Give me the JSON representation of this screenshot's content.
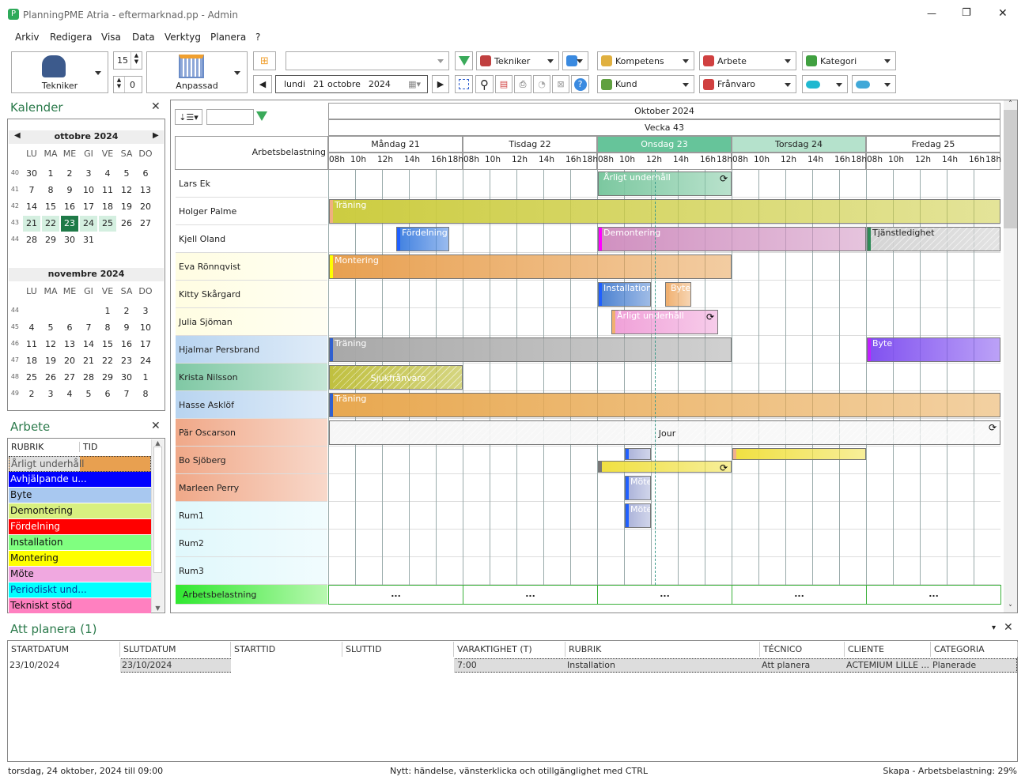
{
  "window": {
    "title": "PlanningPME Atria - eftermarknad.pp - Admin",
    "min": "—",
    "max": "❐",
    "close": "✕"
  },
  "menu": [
    "Arkiv",
    "Redigera",
    "Visa",
    "Data",
    "Verktyg",
    "Planera",
    "?"
  ],
  "toolbar": {
    "resource_view": "Tekniker",
    "spin_top": "15",
    "spin_bottom": "0",
    "view_mode": "Anpassad",
    "search_value": "",
    "date": {
      "day": "lundi",
      "num": "21",
      "month": "octobre",
      "year": "2024"
    },
    "filters_row1": [
      "Tekniker",
      "",
      "Kompetens",
      "Arbete",
      "Kategori"
    ],
    "filters_row2": [
      "Kund",
      "Frånvaro",
      "",
      ""
    ]
  },
  "calendar": {
    "title": "Kalender",
    "weekdays": [
      "LU",
      "MA",
      "ME",
      "GI",
      "VE",
      "SA",
      "DO"
    ],
    "months": [
      {
        "name": "ottobre 2024",
        "weeks": [
          {
            "wk": "40",
            "days": [
              "30",
              "1",
              "2",
              "3",
              "4",
              "5",
              "6"
            ]
          },
          {
            "wk": "41",
            "days": [
              "7",
              "8",
              "9",
              "10",
              "11",
              "12",
              "13"
            ]
          },
          {
            "wk": "42",
            "days": [
              "14",
              "15",
              "16",
              "17",
              "18",
              "19",
              "20"
            ]
          },
          {
            "wk": "43",
            "days": [
              "21",
              "22",
              "23",
              "24",
              "25",
              "26",
              "27"
            ]
          },
          {
            "wk": "44",
            "days": [
              "28",
              "29",
              "30",
              "31",
              "",
              "",
              ""
            ]
          }
        ]
      },
      {
        "name": "novembre 2024",
        "weeks": [
          {
            "wk": "44",
            "days": [
              "",
              "",
              "",
              "",
              "1",
              "2",
              "3"
            ]
          },
          {
            "wk": "45",
            "days": [
              "4",
              "5",
              "6",
              "7",
              "8",
              "9",
              "10"
            ]
          },
          {
            "wk": "46",
            "days": [
              "11",
              "12",
              "13",
              "14",
              "15",
              "16",
              "17"
            ]
          },
          {
            "wk": "47",
            "days": [
              "18",
              "19",
              "20",
              "21",
              "22",
              "23",
              "24"
            ]
          },
          {
            "wk": "48",
            "days": [
              "25",
              "26",
              "27",
              "28",
              "29",
              "30",
              "1"
            ]
          },
          {
            "wk": "49",
            "days": [
              "2",
              "3",
              "4",
              "5",
              "6",
              "7",
              "8"
            ]
          }
        ]
      }
    ],
    "selected_day": "23",
    "highlight_week": "43"
  },
  "arbete": {
    "title": "Arbete",
    "columns": [
      "RUBRIK",
      "TID"
    ],
    "items": [
      {
        "label": "Årligt underhåll",
        "color": "#e8a050"
      },
      {
        "label": "Avhjälpande u...",
        "color": "#0000ff"
      },
      {
        "label": "Byte",
        "color": "#a8c8f0"
      },
      {
        "label": "Demontering",
        "color": "#d8f080"
      },
      {
        "label": "Fördelning",
        "color": "#ff0000"
      },
      {
        "label": "Installation",
        "color": "#80ff80"
      },
      {
        "label": "Montering",
        "color": "#ffff00"
      },
      {
        "label": "Möte",
        "color": "#f0a8e0"
      },
      {
        "label": "Periodiskt und...",
        "color": "#00ffff"
      },
      {
        "label": "Tekniskt stöd",
        "color": "#ff80c0"
      }
    ]
  },
  "gantt": {
    "month": "Oktober 2024",
    "week": "Vecka 43",
    "load_label": "Arbetsbelastning",
    "days": [
      {
        "label": "Måndag 21"
      },
      {
        "label": "Tisdag 22"
      },
      {
        "label": "Onsdag 23",
        "color": "#66c49a",
        "text": "#fff"
      },
      {
        "label": "Torsdag 24",
        "color": "#b5e2cc"
      },
      {
        "label": "Fredag 25"
      }
    ],
    "hours": [
      "08h",
      "10h",
      "12h",
      "14h",
      "16h",
      "18h"
    ],
    "rows": [
      {
        "name": "Lars Ek",
        "bg": "#ffffff"
      },
      {
        "name": "Holger Palme",
        "bg": "#ffffff"
      },
      {
        "name": "Kjell Oland",
        "bg": "#ffffff"
      },
      {
        "name": "Eva Rönnqvist",
        "bg": "#fffde2"
      },
      {
        "name": "Kitty Skårgard",
        "bg": "#fffde2"
      },
      {
        "name": "Julia Sjöman",
        "bg": "#fffde2"
      },
      {
        "name": "Hjalmar Persbrand",
        "bg": "#b8d4f0"
      },
      {
        "name": "Krista Nilsson",
        "bg": "#7fc8a4"
      },
      {
        "name": "Hasse Asklöf",
        "bg": "#b8d4f0"
      },
      {
        "name": "Pär Oscarson",
        "bg": "#f0a888"
      },
      {
        "name": "Bo Sjöberg",
        "bg": "#f0a888"
      },
      {
        "name": "Marleen Perry",
        "bg": "#f0a888"
      },
      {
        "name": "Rum1",
        "bg": "#e0f8fc"
      },
      {
        "name": "Rum2",
        "bg": "#e0f8fc"
      },
      {
        "name": "Rum3",
        "bg": "#e0f8fc"
      }
    ],
    "load_row": {
      "label": "Arbetsbelastning",
      "cells": [
        "...",
        "...",
        "...",
        "...",
        "..."
      ]
    },
    "tasks": [
      {
        "row": 0,
        "label": "Årligt underhåll",
        "from": [
          2,
          8
        ],
        "to": [
          2,
          18
        ],
        "color": "#7cc8a0",
        "accent": "#7cc8a0",
        "recurring": true
      },
      {
        "row": 1,
        "label": "Träning",
        "from": [
          0,
          8
        ],
        "to": [
          4,
          18
        ],
        "color": "#cccc40",
        "accent": "#f0b080"
      },
      {
        "row": 2,
        "label": "Fördelning",
        "from": [
          0,
          13
        ],
        "to": [
          0,
          17
        ],
        "color": "#4080e0",
        "accent": "#2060ff"
      },
      {
        "row": 2,
        "label": "Demontering",
        "from": [
          2,
          8
        ],
        "to": [
          3,
          18
        ],
        "color": "#d090c0",
        "accent": "#ff00ff"
      },
      {
        "row": 2,
        "label": "Tjänstledighet",
        "from": [
          4,
          8
        ],
        "to": [
          4,
          18
        ],
        "color": "#d4d4d4",
        "accent": "#2e8b57",
        "hatched": true,
        "dark": true
      },
      {
        "row": 3,
        "label": "Montering",
        "from": [
          0,
          8
        ],
        "to": [
          2,
          18
        ],
        "color": "#e8a050",
        "accent": "#ffff00"
      },
      {
        "row": 4,
        "label": "Installation",
        "from": [
          2,
          8
        ],
        "to": [
          2,
          12
        ],
        "color": "#4a80d0",
        "accent": "#2060ff"
      },
      {
        "row": 4,
        "label": "Byte",
        "from": [
          2,
          13
        ],
        "to": [
          2,
          15
        ],
        "color": "#f0b070",
        "accent": "#f0b070"
      },
      {
        "row": 5,
        "label": "Årligt underhåll",
        "from": [
          2,
          9
        ],
        "to": [
          2,
          17
        ],
        "color": "#f0a0d8",
        "accent": "#f0b070",
        "recurring": true
      },
      {
        "row": 6,
        "label": "Träning",
        "from": [
          0,
          8
        ],
        "to": [
          2,
          18
        ],
        "color": "#a8a8a8",
        "accent": "#3060d0"
      },
      {
        "row": 6,
        "label": "Byte",
        "from": [
          4,
          8
        ],
        "to": [
          4,
          18
        ],
        "color": "#8050f0",
        "accent": "#c020ff"
      },
      {
        "row": 7,
        "label": "Sjukfrånvaro",
        "from": [
          0,
          8
        ],
        "to": [
          0,
          18
        ],
        "color": "#c0c040",
        "accent": "#c0c040",
        "hatched": true,
        "center": true
      },
      {
        "row": 8,
        "label": "Träning",
        "from": [
          0,
          8
        ],
        "to": [
          4,
          18
        ],
        "color": "#e8a850",
        "accent": "#3060d0"
      },
      {
        "row": 9,
        "label": "Jour",
        "from": [
          0,
          8
        ],
        "to": [
          4,
          18
        ],
        "color": "#f6f6f6",
        "accent": "#f6f6f6",
        "hatched": true,
        "dark": true,
        "center": true,
        "recurring": true
      },
      {
        "row": 10,
        "label": "",
        "from": [
          2,
          10
        ],
        "to": [
          2,
          12
        ],
        "color": "#a8b0d8",
        "accent": "#2060ff",
        "half": "top"
      },
      {
        "row": 10,
        "label": "",
        "from": [
          3,
          8
        ],
        "to": [
          3,
          18
        ],
        "color": "#f0e040",
        "accent": "#f0b090",
        "half": "top"
      },
      {
        "row": 10,
        "label": "",
        "from": [
          2,
          8
        ],
        "to": [
          2,
          18
        ],
        "color": "#f0e040",
        "accent": "#777",
        "half": "bottom",
        "recurring": true
      },
      {
        "row": 11,
        "label": "Möte",
        "from": [
          2,
          10
        ],
        "to": [
          2,
          12
        ],
        "color": "#a8b0d8",
        "accent": "#2060ff"
      },
      {
        "row": 12,
        "label": "Möte",
        "from": [
          2,
          10
        ],
        "to": [
          2,
          12
        ],
        "color": "#a8b0d8",
        "accent": "#2060ff"
      }
    ]
  },
  "att_planera": {
    "title": "Att planera (1)",
    "columns": [
      "STARTDATUM",
      "SLUTDATUM",
      "STARTTID",
      "SLUTTID",
      "VARAKTIGHET (T)",
      "RUBRIK",
      "TÉCNICO",
      "CLIENTE",
      "CATEGORIA"
    ],
    "rows": [
      [
        "23/10/2024",
        "23/10/2024",
        "",
        "",
        "7:00",
        "Installation",
        "Att planera",
        "ACTEMIUM LILLE ...",
        "Planerade"
      ]
    ]
  },
  "status": {
    "left": "torsdag, 24 oktober, 2024 till 09:00",
    "center": "Nytt: händelse, vänsterklicka och otillgänglighet med CTRL",
    "right": "Skapa - Arbetsbelastning: 29%"
  }
}
